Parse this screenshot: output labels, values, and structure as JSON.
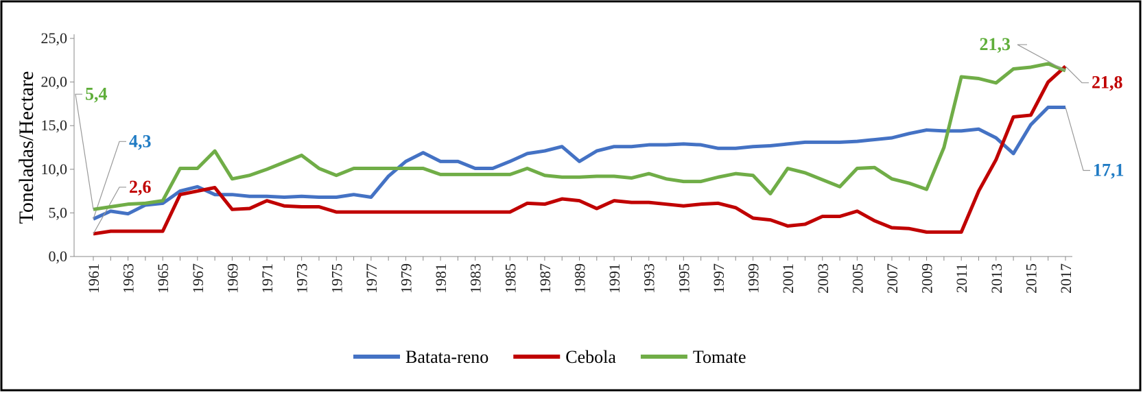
{
  "chart_data": {
    "type": "line",
    "y_label": "Toneladas/Hectare",
    "categories": [
      1961,
      null,
      1963,
      null,
      1965,
      null,
      1967,
      null,
      1969,
      null,
      1971,
      null,
      1973,
      null,
      1975,
      null,
      1977,
      null,
      1979,
      null,
      1981,
      null,
      1983,
      null,
      1985,
      null,
      1987,
      null,
      1989,
      null,
      1991,
      null,
      1993,
      null,
      1995,
      null,
      1997,
      null,
      1999,
      null,
      2001,
      null,
      2003,
      null,
      2005,
      null,
      2007,
      null,
      2009,
      null,
      2011,
      null,
      2013,
      null,
      2015,
      null,
      2017
    ],
    "ylim": [
      0,
      25
    ],
    "yticks": [
      {
        "value": 0,
        "label": "0,0"
      },
      {
        "value": 5,
        "label": "5,0"
      },
      {
        "value": 10,
        "label": "10,0"
      },
      {
        "value": 15,
        "label": "15,0"
      },
      {
        "value": 20,
        "label": "20,0"
      },
      {
        "value": 25,
        "label": "25,0"
      }
    ],
    "legend": "bottom",
    "series": [
      {
        "name": "Batata-reno",
        "color": "#4472c4",
        "label_color": "#1f7bc4",
        "values": [
          4.3,
          5.2,
          4.9,
          5.9,
          6.1,
          7.5,
          8.0,
          7.1,
          7.1,
          6.9,
          6.9,
          6.8,
          6.9,
          6.8,
          6.8,
          7.1,
          6.8,
          9.2,
          10.9,
          11.9,
          10.9,
          10.9,
          10.1,
          10.1,
          10.9,
          11.8,
          12.1,
          12.6,
          10.9,
          12.1,
          12.6,
          12.6,
          12.8,
          12.8,
          12.9,
          12.8,
          12.4,
          12.4,
          12.6,
          12.7,
          12.9,
          13.1,
          13.1,
          13.1,
          13.2,
          13.4,
          13.6,
          14.1,
          14.5,
          14.4,
          14.4,
          14.6,
          13.6,
          11.8,
          15.1,
          17.1,
          17.1
        ],
        "value_labels": [
          "4,3",
          null,
          null,
          null,
          null,
          null,
          null,
          null,
          null,
          null,
          null,
          null,
          null,
          null,
          null,
          null,
          null,
          null,
          null,
          null,
          null,
          null,
          null,
          null,
          null,
          null,
          null,
          null,
          null,
          null,
          null,
          null,
          null,
          null,
          null,
          null,
          null,
          null,
          null,
          null,
          null,
          null,
          null,
          null,
          null,
          null,
          null,
          null,
          null,
          null,
          null,
          null,
          null,
          null,
          null,
          null,
          "17,1"
        ]
      },
      {
        "name": "Cebola",
        "color": "#c00000",
        "label_color": "#c00000",
        "values": [
          2.6,
          2.9,
          2.9,
          2.9,
          2.9,
          7.1,
          7.5,
          7.9,
          5.4,
          5.5,
          6.4,
          5.8,
          5.7,
          5.7,
          5.1,
          5.1,
          5.1,
          5.1,
          5.1,
          5.1,
          5.1,
          5.1,
          5.1,
          5.1,
          5.1,
          6.1,
          6.0,
          6.6,
          6.4,
          5.5,
          6.4,
          6.2,
          6.2,
          6.0,
          5.8,
          6.0,
          6.1,
          5.6,
          4.4,
          4.2,
          3.5,
          3.7,
          4.6,
          4.6,
          5.2,
          4.1,
          3.3,
          3.2,
          2.8,
          2.8,
          2.8,
          7.5,
          11.1,
          16.0,
          16.2,
          20.0,
          21.8
        ],
        "value_labels": [
          "2,6",
          null,
          null,
          null,
          null,
          null,
          null,
          null,
          null,
          null,
          null,
          null,
          null,
          null,
          null,
          null,
          null,
          null,
          null,
          null,
          null,
          null,
          null,
          null,
          null,
          null,
          null,
          null,
          null,
          null,
          null,
          null,
          null,
          null,
          null,
          null,
          null,
          null,
          null,
          null,
          null,
          null,
          null,
          null,
          null,
          null,
          null,
          null,
          null,
          null,
          null,
          null,
          null,
          null,
          null,
          null,
          "21,8"
        ]
      },
      {
        "name": "Tomate",
        "color": "#70ad47",
        "label_color": "#5fae3a",
        "values": [
          5.4,
          5.7,
          6.0,
          6.1,
          6.4,
          10.1,
          10.1,
          12.1,
          8.9,
          9.3,
          10.0,
          10.8,
          11.6,
          10.1,
          9.3,
          10.1,
          10.1,
          10.1,
          10.1,
          10.1,
          9.4,
          9.4,
          9.4,
          9.4,
          9.4,
          10.1,
          9.3,
          9.1,
          9.1,
          9.2,
          9.2,
          9.0,
          9.5,
          8.9,
          8.6,
          8.6,
          9.1,
          9.5,
          9.3,
          7.2,
          10.1,
          9.6,
          8.8,
          8.0,
          10.1,
          10.2,
          8.9,
          8.4,
          7.7,
          12.5,
          20.6,
          20.4,
          19.9,
          21.5,
          21.7,
          22.1,
          21.3
        ],
        "value_labels": [
          "5,4",
          null,
          null,
          null,
          null,
          null,
          null,
          null,
          null,
          null,
          null,
          null,
          null,
          null,
          null,
          null,
          null,
          null,
          null,
          null,
          null,
          null,
          null,
          null,
          null,
          null,
          null,
          null,
          null,
          null,
          null,
          null,
          null,
          null,
          null,
          null,
          null,
          null,
          null,
          null,
          null,
          null,
          null,
          null,
          null,
          null,
          null,
          null,
          null,
          null,
          null,
          null,
          null,
          null,
          null,
          null,
          "21,3"
        ]
      }
    ]
  }
}
